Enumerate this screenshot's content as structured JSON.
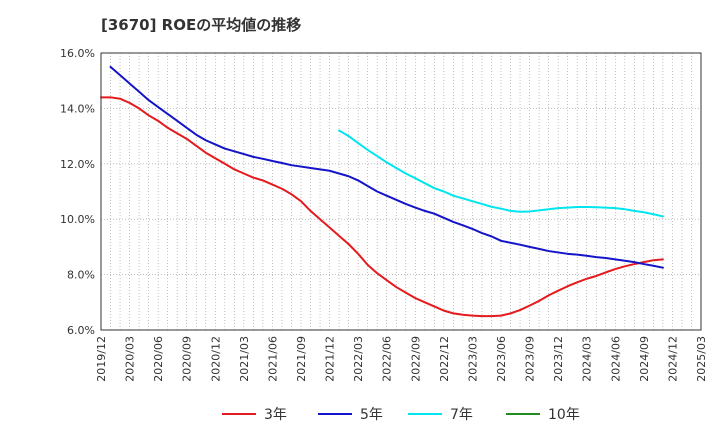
{
  "chart_data": {
    "type": "line",
    "title": "[3670]  ROEの平均値の推移",
    "xlabel": "",
    "ylabel": "",
    "ylim": [
      6.0,
      16.0
    ],
    "yticks": [
      6.0,
      8.0,
      10.0,
      12.0,
      14.0,
      16.0
    ],
    "ytick_labels": [
      "6.0%",
      "8.0%",
      "10.0%",
      "12.0%",
      "14.0%",
      "16.0%"
    ],
    "xlim": [
      "2019/12",
      "2025/03"
    ],
    "xtick_labels": [
      "2019/12",
      "2020/03",
      "2020/06",
      "2020/09",
      "2020/12",
      "2021/03",
      "2021/06",
      "2021/09",
      "2021/12",
      "2022/03",
      "2022/06",
      "2022/09",
      "2022/12",
      "2023/03",
      "2023/06",
      "2023/09",
      "2023/12",
      "2024/03",
      "2024/06",
      "2024/09",
      "2024/12",
      "2025/03"
    ],
    "grid": true,
    "legend_position": "bottom",
    "series": [
      {
        "name": "3年",
        "color": "#e41a1c",
        "points": [
          [
            "2019/12",
            14.4
          ],
          [
            "2020/01",
            14.4
          ],
          [
            "2020/02",
            14.35
          ],
          [
            "2020/03",
            14.2
          ],
          [
            "2020/04",
            14.0
          ],
          [
            "2020/05",
            13.75
          ],
          [
            "2020/06",
            13.55
          ],
          [
            "2020/07",
            13.3
          ],
          [
            "2020/08",
            13.1
          ],
          [
            "2020/09",
            12.9
          ],
          [
            "2020/10",
            12.65
          ],
          [
            "2020/11",
            12.4
          ],
          [
            "2020/12",
            12.2
          ],
          [
            "2021/01",
            12.0
          ],
          [
            "2021/02",
            11.8
          ],
          [
            "2021/03",
            11.65
          ],
          [
            "2021/04",
            11.5
          ],
          [
            "2021/05",
            11.4
          ],
          [
            "2021/06",
            11.25
          ],
          [
            "2021/07",
            11.1
          ],
          [
            "2021/08",
            10.9
          ],
          [
            "2021/09",
            10.65
          ],
          [
            "2021/10",
            10.3
          ],
          [
            "2021/11",
            10.0
          ],
          [
            "2021/12",
            9.7
          ],
          [
            "2022/01",
            9.4
          ],
          [
            "2022/02",
            9.1
          ],
          [
            "2022/03",
            8.75
          ],
          [
            "2022/04",
            8.35
          ],
          [
            "2022/05",
            8.05
          ],
          [
            "2022/06",
            7.8
          ],
          [
            "2022/07",
            7.55
          ],
          [
            "2022/08",
            7.35
          ],
          [
            "2022/09",
            7.15
          ],
          [
            "2022/10",
            7.0
          ],
          [
            "2022/11",
            6.85
          ],
          [
            "2022/12",
            6.7
          ],
          [
            "2023/01",
            6.6
          ],
          [
            "2023/02",
            6.55
          ],
          [
            "2023/03",
            6.52
          ],
          [
            "2023/04",
            6.5
          ],
          [
            "2023/05",
            6.5
          ],
          [
            "2023/06",
            6.52
          ],
          [
            "2023/07",
            6.6
          ],
          [
            "2023/08",
            6.72
          ],
          [
            "2023/09",
            6.88
          ],
          [
            "2023/10",
            7.05
          ],
          [
            "2023/11",
            7.25
          ],
          [
            "2023/12",
            7.42
          ],
          [
            "2024/01",
            7.58
          ],
          [
            "2024/02",
            7.72
          ],
          [
            "2024/03",
            7.85
          ],
          [
            "2024/04",
            7.95
          ],
          [
            "2024/05",
            8.08
          ],
          [
            "2024/06",
            8.2
          ],
          [
            "2024/07",
            8.3
          ],
          [
            "2024/08",
            8.38
          ],
          [
            "2024/09",
            8.45
          ],
          [
            "2024/10",
            8.52
          ],
          [
            "2024/11",
            8.55
          ]
        ]
      },
      {
        "name": "5年",
        "color": "#1414c8",
        "points": [
          [
            "2020/01",
            15.5
          ],
          [
            "2020/02",
            15.2
          ],
          [
            "2020/03",
            14.9
          ],
          [
            "2020/04",
            14.6
          ],
          [
            "2020/05",
            14.3
          ],
          [
            "2020/06",
            14.05
          ],
          [
            "2020/07",
            13.8
          ],
          [
            "2020/08",
            13.55
          ],
          [
            "2020/09",
            13.3
          ],
          [
            "2020/10",
            13.05
          ],
          [
            "2020/11",
            12.85
          ],
          [
            "2020/12",
            12.7
          ],
          [
            "2021/01",
            12.55
          ],
          [
            "2021/02",
            12.45
          ],
          [
            "2021/03",
            12.35
          ],
          [
            "2021/04",
            12.25
          ],
          [
            "2021/05",
            12.18
          ],
          [
            "2021/06",
            12.1
          ],
          [
            "2021/07",
            12.03
          ],
          [
            "2021/08",
            11.95
          ],
          [
            "2021/09",
            11.9
          ],
          [
            "2021/10",
            11.85
          ],
          [
            "2021/11",
            11.8
          ],
          [
            "2021/12",
            11.75
          ],
          [
            "2022/01",
            11.65
          ],
          [
            "2022/02",
            11.55
          ],
          [
            "2022/03",
            11.4
          ],
          [
            "2022/04",
            11.2
          ],
          [
            "2022/05",
            11.0
          ],
          [
            "2022/06",
            10.85
          ],
          [
            "2022/07",
            10.7
          ],
          [
            "2022/08",
            10.55
          ],
          [
            "2022/09",
            10.42
          ],
          [
            "2022/10",
            10.3
          ],
          [
            "2022/11",
            10.2
          ],
          [
            "2022/12",
            10.05
          ],
          [
            "2023/01",
            9.9
          ],
          [
            "2023/02",
            9.78
          ],
          [
            "2023/03",
            9.65
          ],
          [
            "2023/04",
            9.5
          ],
          [
            "2023/05",
            9.38
          ],
          [
            "2023/06",
            9.22
          ],
          [
            "2023/07",
            9.15
          ],
          [
            "2023/08",
            9.08
          ],
          [
            "2023/09",
            9.0
          ],
          [
            "2023/10",
            8.93
          ],
          [
            "2023/11",
            8.85
          ],
          [
            "2023/12",
            8.8
          ],
          [
            "2024/01",
            8.75
          ],
          [
            "2024/02",
            8.72
          ],
          [
            "2024/03",
            8.68
          ],
          [
            "2024/04",
            8.63
          ],
          [
            "2024/05",
            8.6
          ],
          [
            "2024/06",
            8.55
          ],
          [
            "2024/07",
            8.5
          ],
          [
            "2024/08",
            8.45
          ],
          [
            "2024/09",
            8.38
          ],
          [
            "2024/10",
            8.32
          ],
          [
            "2024/11",
            8.25
          ]
        ]
      },
      {
        "name": "7年",
        "color": "#00e5ee",
        "points": [
          [
            "2022/01",
            13.2
          ],
          [
            "2022/02",
            13.0
          ],
          [
            "2022/03",
            12.75
          ],
          [
            "2022/04",
            12.5
          ],
          [
            "2022/05",
            12.28
          ],
          [
            "2022/06",
            12.05
          ],
          [
            "2022/07",
            11.85
          ],
          [
            "2022/08",
            11.65
          ],
          [
            "2022/09",
            11.48
          ],
          [
            "2022/10",
            11.3
          ],
          [
            "2022/11",
            11.12
          ],
          [
            "2022/12",
            11.0
          ],
          [
            "2023/01",
            10.85
          ],
          [
            "2023/02",
            10.75
          ],
          [
            "2023/03",
            10.65
          ],
          [
            "2023/04",
            10.55
          ],
          [
            "2023/05",
            10.45
          ],
          [
            "2023/06",
            10.38
          ],
          [
            "2023/07",
            10.3
          ],
          [
            "2023/08",
            10.27
          ],
          [
            "2023/09",
            10.28
          ],
          [
            "2023/10",
            10.32
          ],
          [
            "2023/11",
            10.36
          ],
          [
            "2023/12",
            10.4
          ],
          [
            "2024/01",
            10.42
          ],
          [
            "2024/02",
            10.44
          ],
          [
            "2024/03",
            10.44
          ],
          [
            "2024/04",
            10.43
          ],
          [
            "2024/05",
            10.42
          ],
          [
            "2024/06",
            10.4
          ],
          [
            "2024/07",
            10.36
          ],
          [
            "2024/08",
            10.3
          ],
          [
            "2024/09",
            10.25
          ],
          [
            "2024/10",
            10.18
          ],
          [
            "2024/11",
            10.1
          ]
        ]
      },
      {
        "name": "10年",
        "color": "#228b22",
        "points": []
      }
    ]
  }
}
